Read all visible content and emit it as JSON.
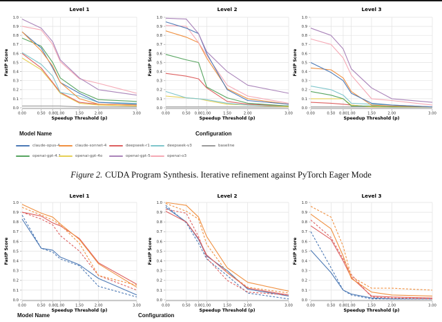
{
  "page": {
    "caption_figure": "Figure 2.",
    "caption_text": "CUDA Program Synthesis. Iterative refinement against PyTorch Eager Mode"
  },
  "colors": {
    "blue": "#4c79b5",
    "orange": "#f09040",
    "red": "#dd5f5f",
    "teal": "#7ec5cb",
    "gray": "#9a9a9a",
    "green": "#56a45f",
    "yellow": "#e6cf55",
    "purple": "#a983b9",
    "pink": "#f5a8b4",
    "grid": "#e2e2e2",
    "axis_line": "#c9c9c9",
    "tick": "#b0b0b0",
    "tick_text": "#333333"
  },
  "legend_top": {
    "model_title": "Model Name",
    "config_title": "Configuration",
    "row1": [
      {
        "label": "claude-opus-4",
        "color": "blue"
      },
      {
        "label": "claude-sonnet-4",
        "color": "orange"
      },
      {
        "label": "deepseek-r1",
        "color": "red"
      },
      {
        "label": "deepseek-v3",
        "color": "teal"
      },
      {
        "label": "baseline",
        "color": "gray"
      }
    ],
    "row2": [
      {
        "label": "openai-gpt-4.1",
        "color": "green"
      },
      {
        "label": "openai-gpt-4o",
        "color": "yellow"
      },
      {
        "label": "openai-gpt-5",
        "color": "purple"
      },
      {
        "label": "openai-o3",
        "color": "pink"
      }
    ]
  },
  "legend_bottom": {
    "model_title": "Model Name",
    "config_title": "Configuration"
  },
  "chart_data": [
    {
      "type": "line",
      "title": "Level 1",
      "xlabel": "Speedup Threshold (p)",
      "ylabel": "FastP Score",
      "xlim": [
        0.0,
        3.0
      ],
      "ylim": [
        0.0,
        1.0
      ],
      "x": [
        0.0,
        0.5,
        0.8,
        1.0,
        1.5,
        2.0,
        3.0
      ],
      "x_tick_labels": [
        "0.00",
        "0.50",
        "0.80",
        "1.00",
        "1.50",
        "2.00",
        "3.00"
      ],
      "y_ticks": [
        0.0,
        0.1,
        0.2,
        0.3,
        0.4,
        0.5,
        0.6,
        0.7,
        0.8,
        0.9,
        1.0
      ],
      "grid": true,
      "series": [
        {
          "name": "baseline",
          "color": "gray",
          "style": "solid",
          "values": [
            0.02,
            0.02,
            0.02,
            0.02,
            0.01,
            0.01,
            0.01
          ]
        },
        {
          "name": "openai-gpt-4o",
          "color": "yellow",
          "style": "solid",
          "values": [
            0.55,
            0.42,
            0.27,
            0.16,
            0.05,
            0.03,
            0.02
          ]
        },
        {
          "name": "deepseek-r1",
          "color": "red",
          "style": "solid",
          "values": [
            0.6,
            0.44,
            0.28,
            0.17,
            0.06,
            0.04,
            0.03
          ]
        },
        {
          "name": "deepseek-v3",
          "color": "teal",
          "style": "solid",
          "values": [
            0.61,
            0.48,
            0.35,
            0.17,
            0.13,
            0.06,
            0.05
          ]
        },
        {
          "name": "openai-gpt-4.1",
          "color": "green",
          "style": "solid",
          "values": [
            0.77,
            0.68,
            0.5,
            0.33,
            0.18,
            0.09,
            0.07
          ]
        },
        {
          "name": "claude-opus-4",
          "color": "blue",
          "style": "solid",
          "values": [
            0.84,
            0.66,
            0.44,
            0.28,
            0.16,
            0.06,
            0.04
          ]
        },
        {
          "name": "claude-sonnet-4",
          "color": "orange",
          "style": "solid",
          "values": [
            0.84,
            0.63,
            0.46,
            0.28,
            0.1,
            0.04,
            0.03
          ]
        },
        {
          "name": "openai-o3",
          "color": "pink",
          "style": "solid",
          "values": [
            0.9,
            0.86,
            0.7,
            0.51,
            0.32,
            0.27,
            0.16
          ]
        },
        {
          "name": "openai-gpt-5",
          "color": "purple",
          "style": "solid",
          "values": [
            0.98,
            0.88,
            0.73,
            0.53,
            0.33,
            0.2,
            0.14
          ]
        }
      ]
    },
    {
      "type": "line",
      "title": "Level 2",
      "xlabel": "Speedup Threshold (p)",
      "ylabel": "FastP Score",
      "xlim": [
        0.0,
        3.0
      ],
      "ylim": [
        0.0,
        1.0
      ],
      "x": [
        0.0,
        0.5,
        0.8,
        1.0,
        1.5,
        2.0,
        3.0
      ],
      "x_tick_labels": [
        "0.00",
        "0.50",
        "0.80",
        "1.00",
        "1.50",
        "2.00",
        "3.00"
      ],
      "y_ticks": [
        0.0,
        0.1,
        0.2,
        0.3,
        0.4,
        0.5,
        0.6,
        0.7,
        0.8,
        0.9,
        1.0
      ],
      "grid": true,
      "series": [
        {
          "name": "baseline",
          "color": "gray",
          "style": "solid",
          "values": [
            0.01,
            0.01,
            0.01,
            0.01,
            0.01,
            0.01,
            0.01
          ]
        },
        {
          "name": "openai-gpt-4o",
          "color": "yellow",
          "style": "solid",
          "values": [
            0.13,
            0.11,
            0.1,
            0.08,
            0.04,
            0.03,
            0.01
          ]
        },
        {
          "name": "deepseek-v3",
          "color": "teal",
          "style": "solid",
          "values": [
            0.18,
            0.11,
            0.1,
            0.09,
            0.05,
            0.03,
            0.02
          ]
        },
        {
          "name": "deepseek-r1",
          "color": "red",
          "style": "solid",
          "values": [
            0.38,
            0.35,
            0.32,
            0.22,
            0.07,
            0.04,
            0.02
          ]
        },
        {
          "name": "openai-gpt-4.1",
          "color": "green",
          "style": "solid",
          "values": [
            0.59,
            0.53,
            0.5,
            0.23,
            0.11,
            0.05,
            0.02
          ]
        },
        {
          "name": "claude-sonnet-4",
          "color": "orange",
          "style": "solid",
          "values": [
            0.85,
            0.78,
            0.72,
            0.55,
            0.21,
            0.1,
            0.04
          ]
        },
        {
          "name": "openai-o3",
          "color": "pink",
          "style": "solid",
          "values": [
            0.91,
            0.9,
            0.72,
            0.58,
            0.25,
            0.13,
            0.05
          ]
        },
        {
          "name": "claude-opus-4",
          "color": "blue",
          "style": "solid",
          "values": [
            0.95,
            0.88,
            0.82,
            0.6,
            0.2,
            0.08,
            0.04
          ]
        },
        {
          "name": "openai-gpt-5",
          "color": "purple",
          "style": "solid",
          "values": [
            0.99,
            0.98,
            0.82,
            0.62,
            0.4,
            0.25,
            0.16
          ]
        }
      ]
    },
    {
      "type": "line",
      "title": "Level 3",
      "xlabel": "Speedup Threshold (p)",
      "ylabel": "FastP Score",
      "xlim": [
        0.0,
        3.0
      ],
      "ylim": [
        0.0,
        1.0
      ],
      "x": [
        0.0,
        0.5,
        0.8,
        1.0,
        1.5,
        2.0,
        3.0
      ],
      "x_tick_labels": [
        "0.00",
        "0.50",
        "0.80",
        "1.00",
        "1.50",
        "2.00",
        "3.00"
      ],
      "y_ticks": [
        0.0,
        0.1,
        0.2,
        0.3,
        0.4,
        0.5,
        0.6,
        0.7,
        0.8,
        0.9,
        1.0
      ],
      "grid": true,
      "series": [
        {
          "name": "baseline",
          "color": "gray",
          "style": "solid",
          "values": [
            0.01,
            0.01,
            0.01,
            0.01,
            0.01,
            0.01,
            0.01
          ]
        },
        {
          "name": "deepseek-r1",
          "color": "red",
          "style": "solid",
          "values": [
            0.06,
            0.05,
            0.04,
            0.03,
            0.01,
            0.01,
            0.01
          ]
        },
        {
          "name": "openai-gpt-4o",
          "color": "yellow",
          "style": "solid",
          "values": [
            0.1,
            0.1,
            0.1,
            0.03,
            0.01,
            0.01,
            0.01
          ]
        },
        {
          "name": "openai-gpt-4.1",
          "color": "green",
          "style": "solid",
          "values": [
            0.18,
            0.14,
            0.1,
            0.02,
            0.02,
            0.01,
            0.01
          ]
        },
        {
          "name": "deepseek-v3",
          "color": "teal",
          "style": "solid",
          "values": [
            0.24,
            0.2,
            0.14,
            0.05,
            0.04,
            0.03,
            0.01
          ]
        },
        {
          "name": "claude-sonnet-4",
          "color": "orange",
          "style": "solid",
          "values": [
            0.44,
            0.42,
            0.33,
            0.18,
            0.03,
            0.02,
            0.01
          ]
        },
        {
          "name": "claude-opus-4",
          "color": "blue",
          "style": "solid",
          "values": [
            0.5,
            0.39,
            0.3,
            0.16,
            0.05,
            0.03,
            0.01
          ]
        },
        {
          "name": "openai-o3",
          "color": "pink",
          "style": "solid",
          "values": [
            0.76,
            0.7,
            0.55,
            0.36,
            0.1,
            0.08,
            0.03
          ]
        },
        {
          "name": "openai-gpt-5",
          "color": "purple",
          "style": "solid",
          "values": [
            0.88,
            0.8,
            0.65,
            0.43,
            0.22,
            0.1,
            0.06
          ]
        }
      ]
    },
    {
      "type": "line",
      "title": "Level 1",
      "xlabel": "Speedup Threshold (p)",
      "ylabel": "FastP Score",
      "xlim": [
        0.0,
        3.0
      ],
      "ylim": [
        0.0,
        1.0
      ],
      "x": [
        0.0,
        0.5,
        0.8,
        1.0,
        1.5,
        2.0,
        3.0
      ],
      "x_tick_labels": [
        "0.00",
        "0.50",
        "0.80",
        "1.00",
        "1.50",
        "2.00",
        "3.00"
      ],
      "y_ticks": [
        0.0,
        0.1,
        0.2,
        0.3,
        0.4,
        0.5,
        0.6,
        0.7,
        0.8,
        0.9,
        1.0
      ],
      "grid": true,
      "series": [
        {
          "name": "claude-opus-4",
          "color": "blue",
          "style": "dashed",
          "values": [
            0.87,
            0.53,
            0.49,
            0.42,
            0.35,
            0.14,
            0.03
          ]
        },
        {
          "name": "claude-opus-4",
          "color": "blue",
          "style": "solid",
          "values": [
            0.83,
            0.53,
            0.51,
            0.44,
            0.36,
            0.22,
            0.05
          ]
        },
        {
          "name": "deepseek-r1",
          "color": "red",
          "style": "dashed",
          "values": [
            0.9,
            0.83,
            0.77,
            0.66,
            0.5,
            0.25,
            0.1
          ]
        },
        {
          "name": "deepseek-r1",
          "color": "red",
          "style": "solid",
          "values": [
            0.9,
            0.86,
            0.79,
            0.76,
            0.63,
            0.38,
            0.16
          ]
        },
        {
          "name": "claude-sonnet-4",
          "color": "orange",
          "style": "dashed",
          "values": [
            0.95,
            0.87,
            0.82,
            0.77,
            0.58,
            0.25,
            0.15
          ]
        },
        {
          "name": "claude-sonnet-4",
          "color": "orange",
          "style": "solid",
          "values": [
            0.98,
            0.89,
            0.85,
            0.78,
            0.62,
            0.37,
            0.13
          ]
        }
      ]
    },
    {
      "type": "line",
      "title": "Level 2",
      "xlabel": "Speedup Threshold (p)",
      "ylabel": "FastP Score",
      "xlim": [
        0.0,
        3.0
      ],
      "ylim": [
        0.0,
        1.0
      ],
      "x": [
        0.0,
        0.5,
        0.8,
        1.0,
        1.5,
        2.0,
        3.0
      ],
      "x_tick_labels": [
        "0.00",
        "0.50",
        "0.80",
        "1.00",
        "1.50",
        "2.00",
        "3.00"
      ],
      "y_ticks": [
        0.0,
        0.1,
        0.2,
        0.3,
        0.4,
        0.5,
        0.6,
        0.7,
        0.8,
        0.9,
        1.0
      ],
      "grid": true,
      "series": [
        {
          "name": "claude-opus-4",
          "color": "blue",
          "style": "dashed",
          "values": [
            0.97,
            0.79,
            0.58,
            0.42,
            0.25,
            0.07,
            0.01
          ]
        },
        {
          "name": "claude-opus-4",
          "color": "blue",
          "style": "solid",
          "values": [
            0.95,
            0.8,
            0.62,
            0.45,
            0.3,
            0.11,
            0.04
          ]
        },
        {
          "name": "deepseek-r1",
          "color": "red",
          "style": "dashed",
          "values": [
            0.93,
            0.89,
            0.65,
            0.43,
            0.2,
            0.08,
            0.05
          ]
        },
        {
          "name": "deepseek-r1",
          "color": "red",
          "style": "solid",
          "values": [
            0.91,
            0.8,
            0.63,
            0.46,
            0.28,
            0.12,
            0.05
          ]
        },
        {
          "name": "claude-sonnet-4",
          "color": "orange",
          "style": "dashed",
          "values": [
            0.99,
            0.91,
            0.83,
            0.57,
            0.28,
            0.13,
            0.07
          ]
        },
        {
          "name": "claude-sonnet-4",
          "color": "orange",
          "style": "solid",
          "values": [
            1.0,
            0.97,
            0.85,
            0.65,
            0.33,
            0.18,
            0.09
          ]
        }
      ]
    },
    {
      "type": "line",
      "title": "Level 3",
      "xlabel": "Speedup Threshold (p)",
      "ylabel": "FastP Score",
      "xlim": [
        0.0,
        3.0
      ],
      "ylim": [
        0.0,
        1.0
      ],
      "x": [
        0.0,
        0.5,
        0.8,
        1.0,
        1.5,
        2.0,
        3.0
      ],
      "x_tick_labels": [
        "0.00",
        "0.50",
        "0.80",
        "1.00",
        "1.50",
        "2.00",
        "3.00"
      ],
      "y_ticks": [
        0.0,
        0.1,
        0.2,
        0.3,
        0.4,
        0.5,
        0.6,
        0.7,
        0.8,
        0.9,
        1.0
      ],
      "grid": true,
      "series": [
        {
          "name": "claude-opus-4",
          "color": "blue",
          "style": "dashed",
          "values": [
            0.7,
            0.33,
            0.1,
            0.05,
            0.01,
            0.01,
            0.01
          ]
        },
        {
          "name": "claude-opus-4",
          "color": "blue",
          "style": "solid",
          "values": [
            0.51,
            0.28,
            0.1,
            0.06,
            0.02,
            0.01,
            0.01
          ]
        },
        {
          "name": "deepseek-r1",
          "color": "red",
          "style": "dashed",
          "values": [
            0.82,
            0.64,
            0.42,
            0.26,
            0.03,
            0.02,
            0.01
          ]
        },
        {
          "name": "deepseek-r1",
          "color": "red",
          "style": "solid",
          "values": [
            0.76,
            0.62,
            0.4,
            0.23,
            0.04,
            0.03,
            0.02
          ]
        },
        {
          "name": "claude-sonnet-4",
          "color": "orange",
          "style": "dashed",
          "values": [
            0.96,
            0.85,
            0.55,
            0.24,
            0.12,
            0.12,
            0.1
          ]
        },
        {
          "name": "claude-sonnet-4",
          "color": "orange",
          "style": "solid",
          "values": [
            0.88,
            0.73,
            0.45,
            0.22,
            0.08,
            0.05,
            0.04
          ]
        }
      ]
    }
  ]
}
